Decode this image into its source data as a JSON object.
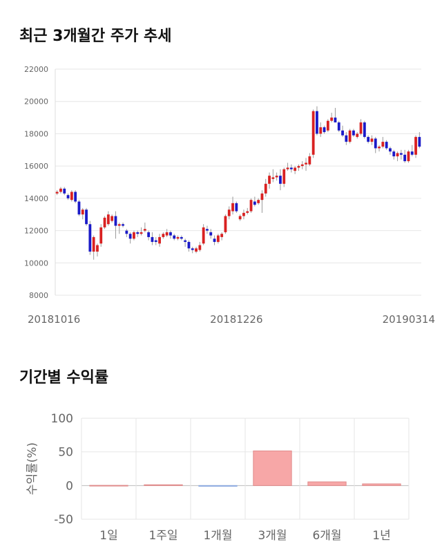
{
  "titles": {
    "price_trend": "최근 3개월간 주가 추세",
    "period_returns": "기간별 수익률"
  },
  "colors": {
    "up": "#d92121",
    "down": "#1a1ac8",
    "bar": "#f7a7a7",
    "bar_edge": "#e08a8a",
    "grid": "#e6e6e6"
  },
  "chart_data": [
    {
      "type": "candlestick",
      "title": "최근 3개월간 주가 추세",
      "ylim": [
        8000,
        22000
      ],
      "y_ticks": [
        8000,
        10000,
        12000,
        14000,
        16000,
        18000,
        20000,
        22000
      ],
      "x_tick_labels": [
        {
          "index": 0,
          "label": "20181016"
        },
        {
          "index": 49,
          "label": "20181226"
        },
        {
          "index": 99,
          "label": "20190314"
        }
      ],
      "grid": true,
      "ohlc": [
        [
          14300,
          14500,
          14200,
          14400
        ],
        [
          14400,
          14700,
          14300,
          14600
        ],
        [
          14600,
          14700,
          14200,
          14300
        ],
        [
          14200,
          14300,
          13900,
          14000
        ],
        [
          13900,
          14500,
          13800,
          14400
        ],
        [
          14400,
          14500,
          13700,
          13800
        ],
        [
          13800,
          13900,
          12900,
          13000
        ],
        [
          13000,
          13400,
          12700,
          13300
        ],
        [
          13300,
          13400,
          12300,
          12400
        ],
        [
          12400,
          12600,
          10500,
          10700
        ],
        [
          10700,
          11700,
          10200,
          11600
        ],
        [
          10700,
          11200,
          10400,
          11100
        ],
        [
          11200,
          12400,
          11000,
          12200
        ],
        [
          12200,
          12900,
          12100,
          12800
        ],
        [
          12400,
          13200,
          12300,
          13000
        ],
        [
          12600,
          13000,
          12500,
          12900
        ],
        [
          12900,
          13200,
          11500,
          12300
        ],
        [
          12300,
          12500,
          11800,
          12400
        ],
        [
          12400,
          12500,
          12200,
          12300
        ],
        [
          12000,
          12100,
          11600,
          11800
        ],
        [
          11800,
          11900,
          11200,
          11500
        ],
        [
          11500,
          12000,
          11400,
          11900
        ],
        [
          11900,
          12000,
          11600,
          11800
        ],
        [
          11800,
          12200,
          11700,
          11900
        ],
        [
          12000,
          12500,
          11900,
          12100
        ],
        [
          11900,
          12000,
          11400,
          11600
        ],
        [
          11600,
          11900,
          11100,
          11300
        ],
        [
          11400,
          11600,
          11100,
          11300
        ],
        [
          11200,
          11800,
          11000,
          11600
        ],
        [
          11600,
          11900,
          11500,
          11800
        ],
        [
          11700,
          12100,
          11600,
          11900
        ],
        [
          11900,
          12000,
          11500,
          11700
        ],
        [
          11700,
          11800,
          11400,
          11500
        ],
        [
          11500,
          11700,
          11400,
          11600
        ],
        [
          11600,
          11700,
          11400,
          11500
        ],
        [
          11400,
          11500,
          11000,
          11300
        ],
        [
          11300,
          11400,
          10700,
          10900
        ],
        [
          10900,
          11000,
          10600,
          10800
        ],
        [
          10700,
          11000,
          10600,
          10900
        ],
        [
          10800,
          11300,
          10700,
          11100
        ],
        [
          11200,
          12400,
          11100,
          12200
        ],
        [
          12100,
          12300,
          11800,
          12000
        ],
        [
          11900,
          12100,
          11500,
          11700
        ],
        [
          11500,
          11700,
          11100,
          11300
        ],
        [
          11300,
          11800,
          11200,
          11700
        ],
        [
          11600,
          11900,
          11400,
          11800
        ],
        [
          11900,
          13000,
          11800,
          12900
        ],
        [
          12900,
          13500,
          12700,
          13300
        ],
        [
          13200,
          14100,
          13000,
          13700
        ],
        [
          13700,
          13800,
          13100,
          13200
        ],
        [
          12700,
          13000,
          12600,
          12900
        ],
        [
          12900,
          13300,
          12700,
          13100
        ],
        [
          13100,
          13400,
          13000,
          13200
        ],
        [
          13200,
          14000,
          13100,
          13900
        ],
        [
          13800,
          14100,
          13500,
          13600
        ],
        [
          13700,
          14000,
          13600,
          13900
        ],
        [
          13900,
          14500,
          13100,
          14300
        ],
        [
          14300,
          15200,
          14100,
          14900
        ],
        [
          14900,
          15600,
          14600,
          15400
        ],
        [
          15200,
          15800,
          15000,
          15300
        ],
        [
          15300,
          15600,
          15100,
          15400
        ],
        [
          15400,
          15800,
          14500,
          14900
        ],
        [
          14900,
          15900,
          14700,
          15800
        ],
        [
          15800,
          16200,
          15700,
          15900
        ],
        [
          15900,
          16100,
          15600,
          15800
        ],
        [
          15700,
          16000,
          15500,
          15900
        ],
        [
          15900,
          16100,
          15700,
          16000
        ],
        [
          16000,
          16300,
          15800,
          16100
        ],
        [
          16100,
          16500,
          15700,
          16200
        ],
        [
          16100,
          16800,
          16000,
          16600
        ],
        [
          16700,
          19500,
          16500,
          19400
        ],
        [
          19400,
          19700,
          17900,
          18000
        ],
        [
          18000,
          18700,
          17800,
          18400
        ],
        [
          18400,
          18500,
          18000,
          18100
        ],
        [
          18200,
          18900,
          18100,
          18800
        ],
        [
          18800,
          19300,
          18700,
          19000
        ],
        [
          19000,
          19600,
          18700,
          18700
        ],
        [
          18700,
          18800,
          18100,
          18200
        ],
        [
          18200,
          18500,
          17800,
          17900
        ],
        [
          17900,
          18100,
          17300,
          17500
        ],
        [
          17500,
          18300,
          17400,
          18200
        ],
        [
          18200,
          18300,
          17800,
          17900
        ],
        [
          17800,
          18100,
          17700,
          18000
        ],
        [
          18000,
          18900,
          17900,
          18700
        ],
        [
          18700,
          18800,
          17700,
          17800
        ],
        [
          17800,
          17900,
          17400,
          17500
        ],
        [
          17500,
          17900,
          17300,
          17700
        ],
        [
          17700,
          17800,
          16800,
          17100
        ],
        [
          17100,
          17300,
          16900,
          17200
        ],
        [
          17200,
          17800,
          17100,
          17500
        ],
        [
          17500,
          17600,
          17000,
          17100
        ],
        [
          17100,
          17200,
          16700,
          16900
        ],
        [
          16900,
          17000,
          16400,
          16600
        ],
        [
          16600,
          16900,
          16300,
          16800
        ],
        [
          16800,
          17000,
          16400,
          16700
        ],
        [
          16700,
          17000,
          16200,
          16300
        ],
        [
          16300,
          17000,
          16200,
          16900
        ],
        [
          16900,
          17300,
          16600,
          16700
        ],
        [
          16700,
          17900,
          16500,
          17800
        ],
        [
          17800,
          18100,
          17100,
          17200
        ]
      ]
    },
    {
      "type": "bar",
      "title": "기간별 수익률",
      "ylabel": "수익률(%)",
      "ylim": [
        -50,
        100
      ],
      "y_ticks": [
        -50,
        0,
        50,
        100
      ],
      "categories": [
        "1일",
        "1주일",
        "1개월",
        "3개월",
        "6개월",
        "1년"
      ],
      "values": [
        0.3,
        1.2,
        -0.8,
        51.5,
        5.5,
        2.5
      ]
    }
  ]
}
